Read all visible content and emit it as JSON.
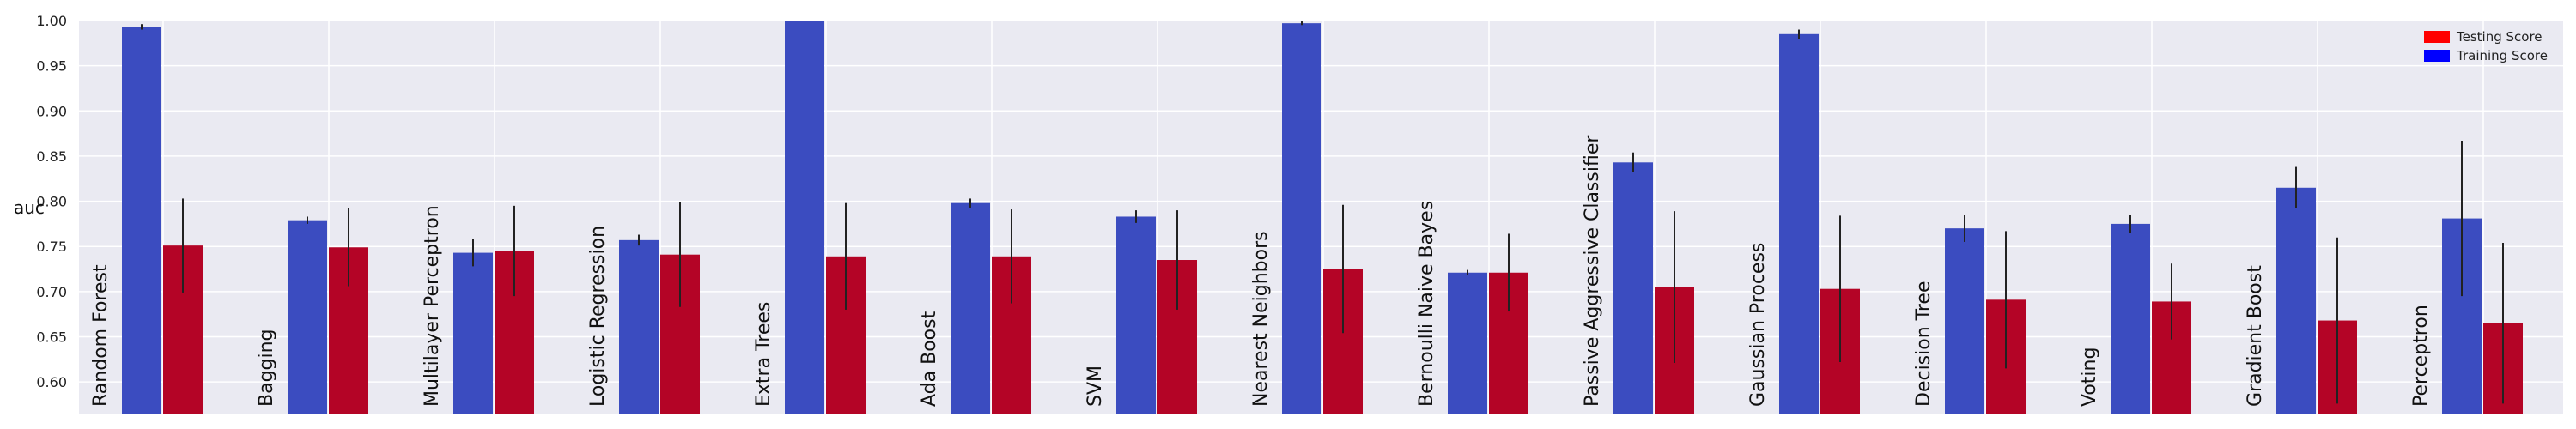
{
  "chart_data": {
    "type": "bar",
    "ylabel": "auc",
    "xlabel": "",
    "ylim": [
      0.565,
      1.0
    ],
    "yticks": [
      "0.60",
      "0.65",
      "0.70",
      "0.75",
      "0.80",
      "0.85",
      "0.90",
      "0.95",
      "1.00"
    ],
    "grid": true,
    "legend_position": "top-right",
    "categories": [
      "Random Forest",
      "Bagging",
      "Multilayer Perceptron",
      "Logistic Regression",
      "Extra Trees",
      "Ada Boost",
      "SVM",
      "Nearest Neighbors",
      "Bernoulli Naive Bayes",
      "Passive Aggressive Classifier",
      "Gaussian Process",
      "Decision Tree",
      "Voting",
      "Gradient Boost",
      "Perceptron"
    ],
    "series": [
      {
        "name": "Training Score",
        "color": "#3b4cc0",
        "values": [
          0.993,
          0.779,
          0.743,
          0.757,
          1.0,
          0.798,
          0.783,
          0.997,
          0.721,
          0.843,
          0.985,
          0.77,
          0.775,
          0.815,
          0.781
        ],
        "errors": [
          0.003,
          0.004,
          0.015,
          0.006,
          0.0,
          0.005,
          0.007,
          0.002,
          0.003,
          0.011,
          0.005,
          0.015,
          0.01,
          0.023,
          0.086
        ]
      },
      {
        "name": "Testing Score",
        "color": "#b40426",
        "values": [
          0.751,
          0.749,
          0.745,
          0.741,
          0.739,
          0.739,
          0.735,
          0.725,
          0.721,
          0.705,
          0.703,
          0.691,
          0.689,
          0.668,
          0.665
        ],
        "errors": [
          0.052,
          0.043,
          0.05,
          0.058,
          0.059,
          0.052,
          0.055,
          0.071,
          0.043,
          0.084,
          0.081,
          0.076,
          0.042,
          0.092,
          0.089
        ]
      }
    ],
    "legend": [
      {
        "label": "Testing Score",
        "color": "#ff0000"
      },
      {
        "label": "Training Score",
        "color": "#0000ff"
      }
    ]
  }
}
